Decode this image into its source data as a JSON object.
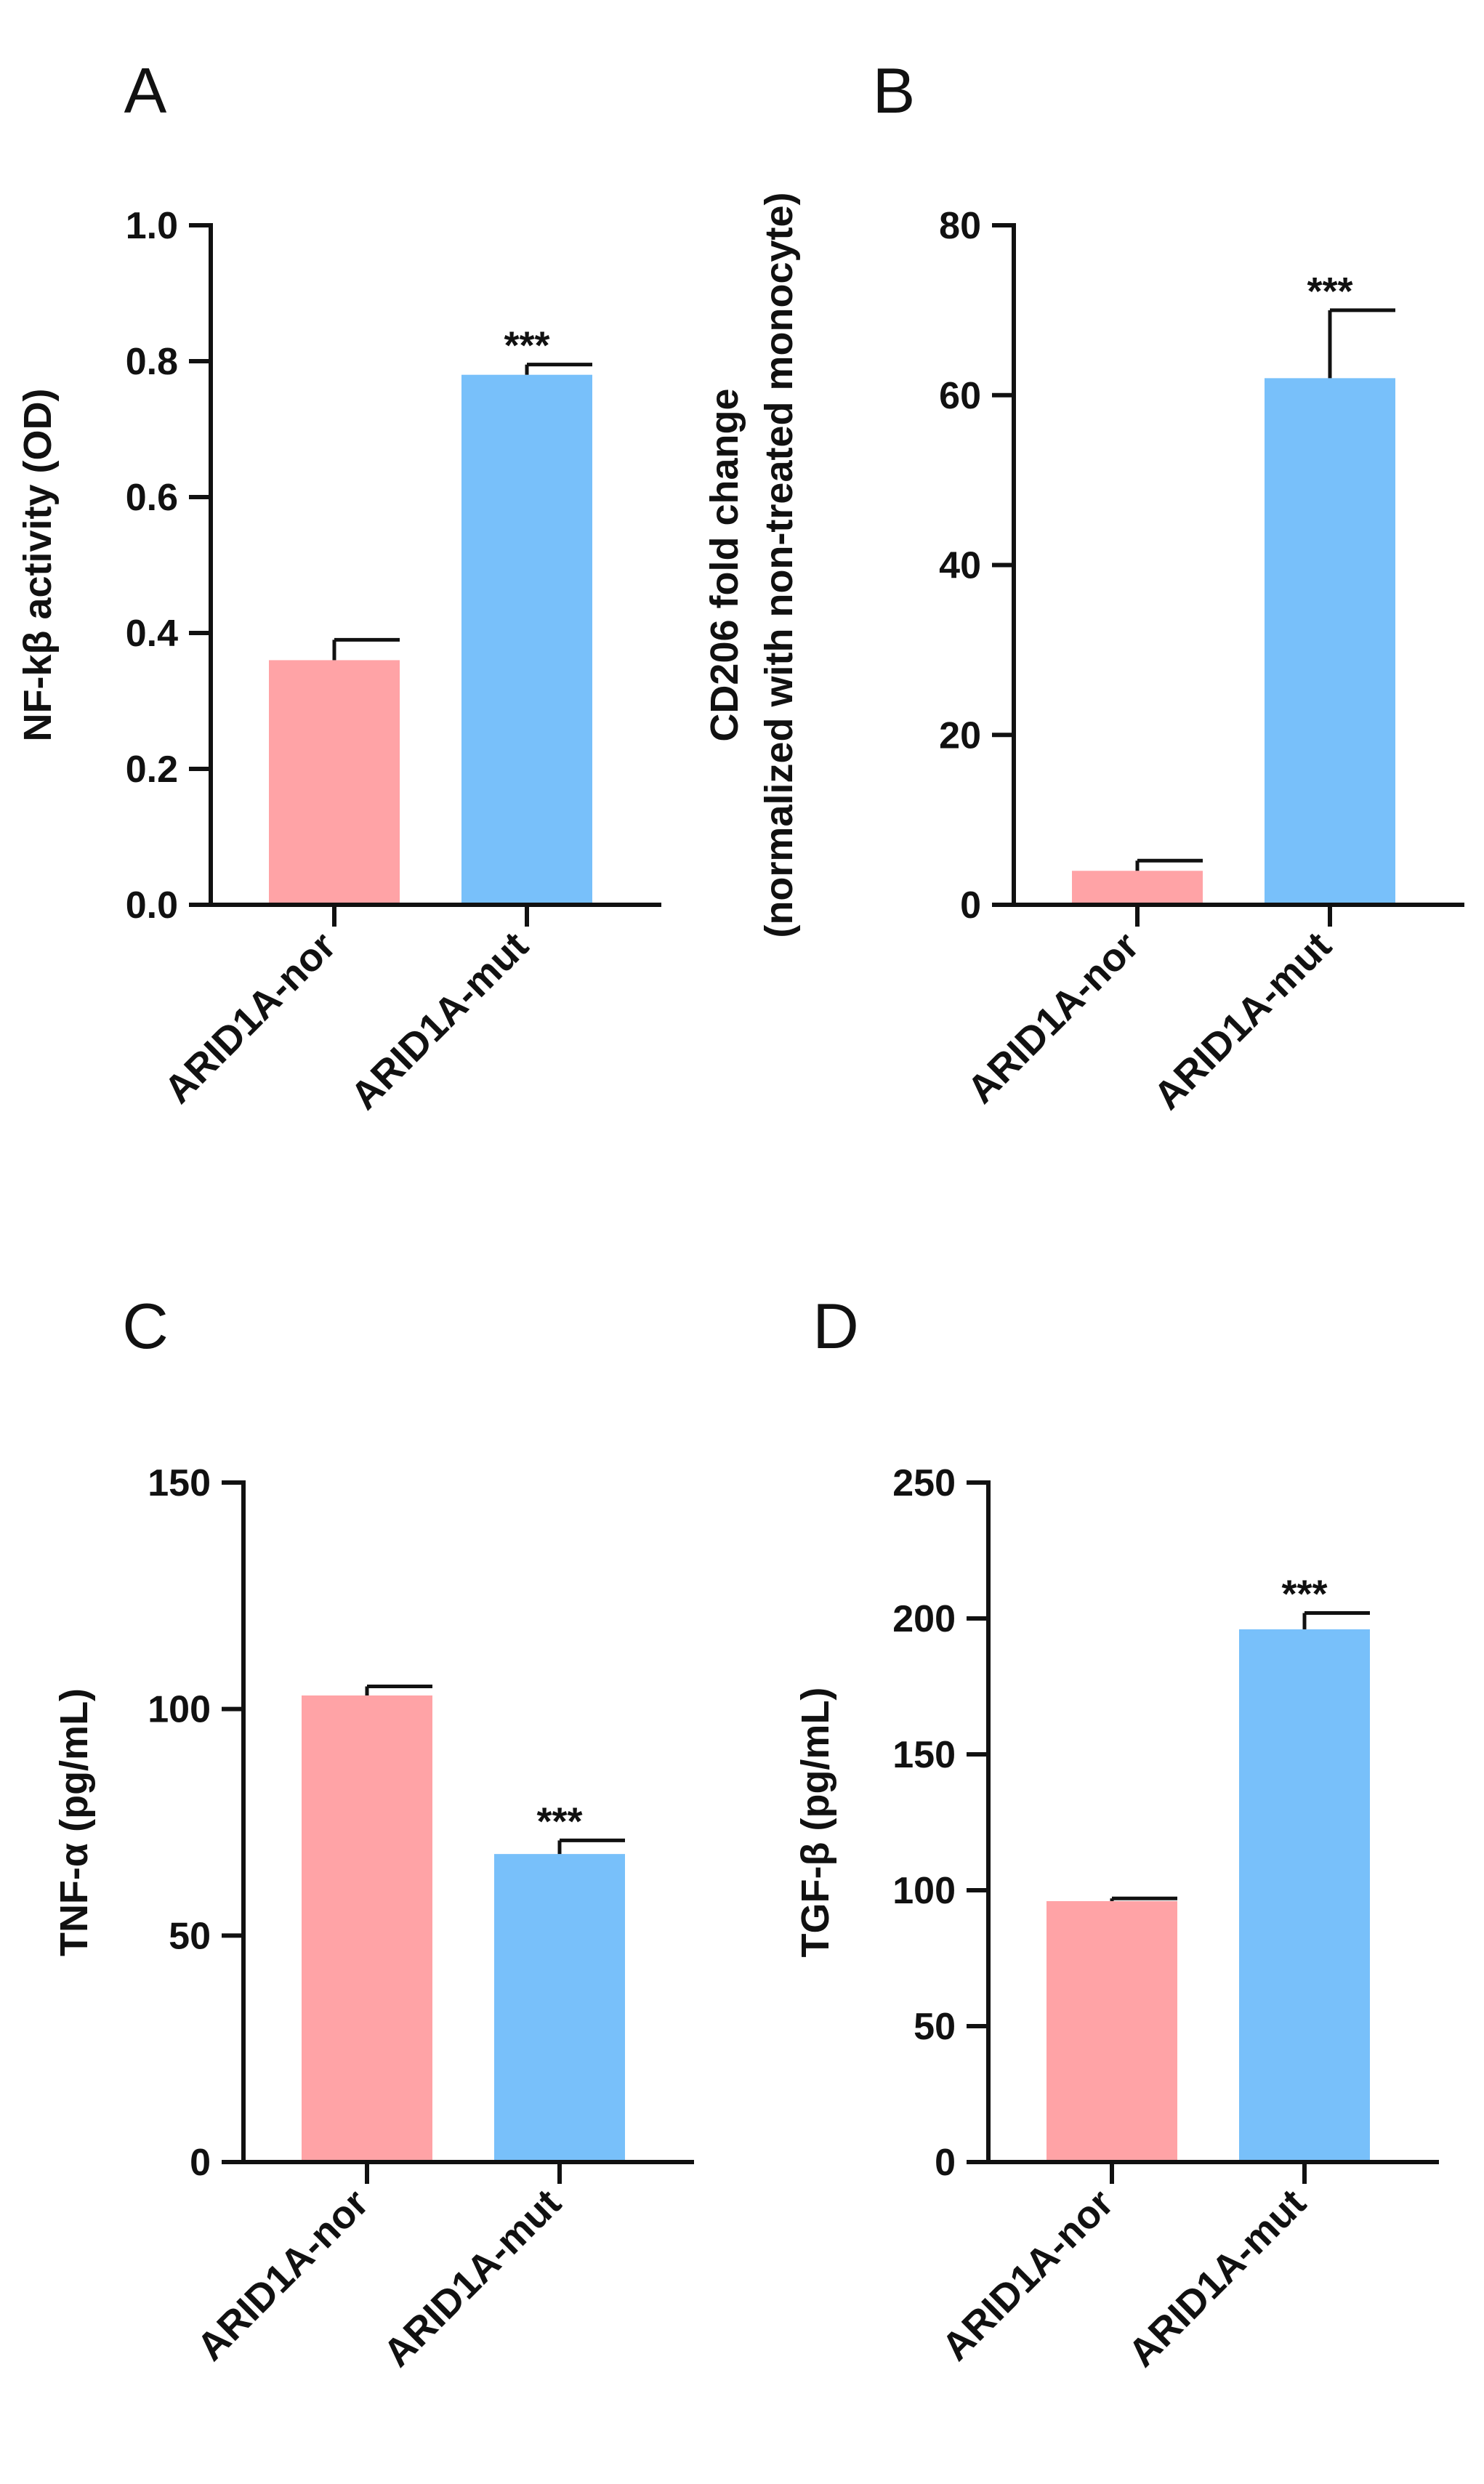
{
  "chart_data": [
    {
      "panel": "A",
      "type": "bar",
      "categories": [
        "ARID1A-nor",
        "ARID1A-mut"
      ],
      "values": [
        0.36,
        0.78
      ],
      "errors": [
        0.03,
        0.015
      ],
      "colors": [
        "#ffa3a6",
        "#78c0fa"
      ],
      "significance": [
        "",
        "***"
      ],
      "ylabel": "NF-kβ activity (OD)",
      "ylim": [
        0,
        1.0
      ],
      "yticks": [
        0.0,
        0.2,
        0.4,
        0.6,
        0.8,
        1.0
      ],
      "ytick_labels": [
        "0.0",
        "0.2",
        "0.4",
        "0.6",
        "0.8",
        "1.0"
      ]
    },
    {
      "panel": "B",
      "type": "bar",
      "categories": [
        "ARID1A-nor",
        "ARID1A-mut"
      ],
      "values": [
        4,
        62
      ],
      "errors": [
        1.2,
        8
      ],
      "colors": [
        "#ffa3a6",
        "#78c0fa"
      ],
      "significance": [
        "",
        "***"
      ],
      "ylabel": "CD206 fold change",
      "ylabel2": "(normalized with non-treated monocyte)",
      "ylim": [
        0,
        80
      ],
      "yticks": [
        0,
        20,
        40,
        60,
        80
      ],
      "ytick_labels": [
        "0",
        "20",
        "40",
        "60",
        "80"
      ]
    },
    {
      "panel": "C",
      "type": "bar",
      "categories": [
        "ARID1A-nor",
        "ARID1A-mut"
      ],
      "values": [
        103,
        68
      ],
      "errors": [
        2,
        3
      ],
      "colors": [
        "#ffa3a6",
        "#78c0fa"
      ],
      "significance": [
        "",
        "***"
      ],
      "ylabel": "TNF-α (pg/mL)",
      "ylim": [
        0,
        150
      ],
      "yticks": [
        0,
        50,
        100,
        150
      ],
      "ytick_labels": [
        "0",
        "50",
        "100",
        "150"
      ]
    },
    {
      "panel": "D",
      "type": "bar",
      "categories": [
        "ARID1A-nor",
        "ARID1A-mut"
      ],
      "values": [
        96,
        196
      ],
      "errors": [
        1,
        6
      ],
      "colors": [
        "#ffa3a6",
        "#78c0fa"
      ],
      "significance": [
        "",
        "***"
      ],
      "ylabel": "TGF-β (pg/mL)",
      "ylim": [
        0,
        250
      ],
      "yticks": [
        0,
        50,
        100,
        150,
        200,
        250
      ],
      "ytick_labels": [
        "0",
        "50",
        "100",
        "150",
        "200",
        "250"
      ]
    }
  ]
}
